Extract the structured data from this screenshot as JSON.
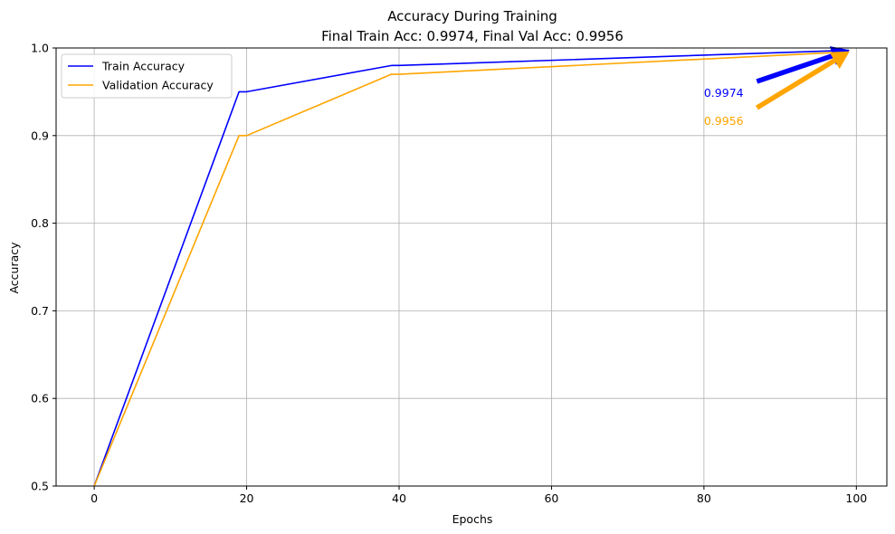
{
  "chart_data": {
    "type": "line",
    "title": "Accuracy During Training",
    "subtitle": "Final Train Acc: 0.9974, Final Val Acc: 0.9956",
    "xlabel": "Epochs",
    "ylabel": "Accuracy",
    "xlim": [
      -5,
      104
    ],
    "ylim": [
      0.5,
      1.0
    ],
    "xticks": [
      0,
      20,
      40,
      60,
      80,
      100
    ],
    "yticks": [
      0.5,
      0.6,
      0.7,
      0.8,
      0.9,
      1.0
    ],
    "xtick_labels": [
      "0",
      "20",
      "40",
      "60",
      "80",
      "100"
    ],
    "ytick_labels": [
      "0.5",
      "0.6",
      "0.7",
      "0.8",
      "0.9",
      "1.0"
    ],
    "grid": true,
    "legend_position": "top-left",
    "series": [
      {
        "name": "Train Accuracy",
        "color": "#0000ff",
        "x": [
          0,
          19,
          20,
          39,
          40,
          99
        ],
        "y": [
          0.5,
          0.95,
          0.95,
          0.98,
          0.98,
          0.9974
        ]
      },
      {
        "name": "Validation Accuracy",
        "color": "#ffa500",
        "x": [
          0,
          19,
          20,
          39,
          40,
          99
        ],
        "y": [
          0.5,
          0.9,
          0.9,
          0.97,
          0.97,
          0.9956
        ]
      }
    ],
    "annotations": [
      {
        "text": "0.9974",
        "color": "#0000ff",
        "text_x": 80,
        "text_y": 0.949,
        "arrow_from_x": 87,
        "arrow_from_y": 0.962,
        "arrow_to_x": 99,
        "arrow_to_y": 0.9974
      },
      {
        "text": "0.9956",
        "color": "#ffa500",
        "text_x": 80,
        "text_y": 0.917,
        "arrow_from_x": 87,
        "arrow_from_y": 0.932,
        "arrow_to_x": 99,
        "arrow_to_y": 0.9956
      }
    ]
  }
}
